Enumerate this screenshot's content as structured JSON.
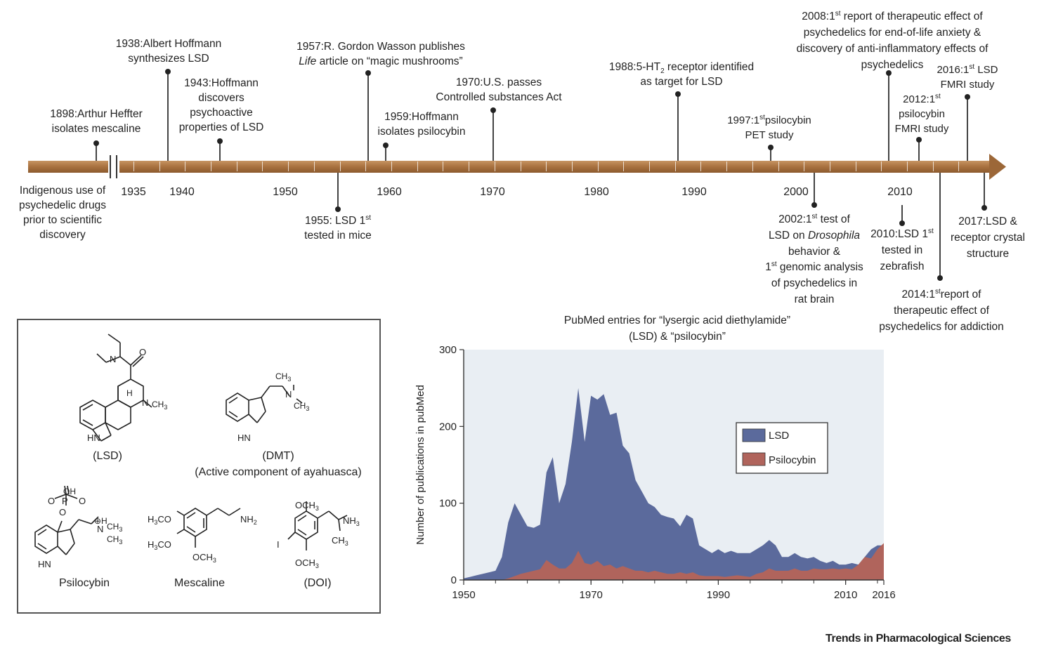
{
  "timeline": {
    "axis_labels": [
      {
        "text": "1935",
        "x": 190
      },
      {
        "text": "1940",
        "x": 259
      },
      {
        "text": "1950",
        "x": 406
      },
      {
        "text": "1960",
        "x": 554
      },
      {
        "text": "1970",
        "x": 701
      },
      {
        "text": "1980",
        "x": 849
      },
      {
        "text": "1990",
        "x": 988
      },
      {
        "text": "2000",
        "x": 1133
      },
      {
        "text": "2010",
        "x": 1281
      }
    ],
    "indigenous": [
      "Indigenous use of",
      "psychedelic drugs",
      "prior to scientific",
      "discovery"
    ],
    "events": {
      "e1898": [
        "1898:Arthur Heffter",
        "isolates mescaline"
      ],
      "e1938": [
        "1938:Albert Hoffmann",
        "synthesizes LSD"
      ],
      "e1943": [
        "1943:Hoffmann",
        "discovers",
        "psychoactive",
        "properties of LSD"
      ],
      "e1955": {
        "line1_a": "1955: LSD 1",
        "line1_sup": "st",
        "line2": "tested in mice"
      },
      "e1957": {
        "line1": "1957:R. Gordon Wasson publishes",
        "line2_italic": "Life",
        "line2_rest": " article on “magic mushrooms”"
      },
      "e1959": [
        "1959:Hoffmann",
        "isolates psilocybin"
      ],
      "e1970": [
        "1970:U.S. passes",
        "Controlled substances Act"
      ],
      "e1988": {
        "line1_a": "1988:5-HT",
        "line1_sub": "2",
        "line1_b": " receptor identified",
        "line2": "as target for LSD"
      },
      "e1997": {
        "line1_a": "1997:1",
        "line1_sup": "st",
        "line1_b": "psilocybin",
        "line2": "PET study"
      },
      "e2002": {
        "l1_a": "2002:1",
        "l1_sup": "st",
        "l1_b": " test of",
        "l2_a": "LSD on ",
        "l2_italic": "Drosophila",
        "l3": "behavior &",
        "l4_a": "1",
        "l4_sup": "st",
        "l4_b": " genomic analysis",
        "l5": "of psychedelics in",
        "l6": "rat brain"
      },
      "e2008": {
        "l1_a": "2008:1",
        "l1_sup": "st",
        "l1_b": " report of therapeutic effect of",
        "l2": "psychedelics for end-of-life anxiety &",
        "l3": "discovery of anti-inflammatory effects of",
        "l4": "psychedelics"
      },
      "e2010": {
        "l1_a": "2010:LSD 1",
        "l1_sup": "st",
        "l2": "tested in",
        "l3": "zebrafish"
      },
      "e2012": {
        "l1_a": "2012:1",
        "l1_sup": "st",
        "l2": "psilocybin",
        "l3": "FMRI study"
      },
      "e2014": {
        "l1_a": "2014:1",
        "l1_sup": "st",
        "l1_b": "report of",
        "l2": "therapeutic effect of",
        "l3": "psychedelics for addiction"
      },
      "e2016": {
        "l1_a": "2016:1",
        "l1_sup": "st",
        "l1_b": " LSD",
        "l2": "FMRI study"
      },
      "e2017": [
        "2017:LSD &",
        "receptor crystal",
        "structure"
      ]
    }
  },
  "structures": {
    "lsd": "(LSD)",
    "dmt_1": "(DMT)",
    "dmt_2": "(Active component of ayahuasca)",
    "psilocybin": "Psilocybin",
    "mescaline": "Mescaline",
    "doi": "(DOI)"
  },
  "chart_data": {
    "type": "area",
    "title": "PubMed entries for “lysergic acid diethylamide” (LSD) & “psilocybin”",
    "title_line1": "PubMed entries for “lysergic acid diethylamide”",
    "title_line2": "(LSD) & “psilocybin”",
    "xlabel": "",
    "ylabel": "Number of publications in pubMed",
    "xlim": [
      1950,
      2016
    ],
    "ylim": [
      0,
      300
    ],
    "xticks": [
      "1950",
      "1970",
      "1990",
      "2010",
      "2016"
    ],
    "xtick_values": [
      1950,
      1970,
      1990,
      2010,
      2016
    ],
    "yticks": [
      "0",
      "100",
      "200",
      "300"
    ],
    "ytick_values": [
      0,
      100,
      200,
      300
    ],
    "legend_position": "center-right",
    "series": [
      {
        "name": "LSD",
        "color": "#5b6a9c",
        "x": [
          1950,
          1951,
          1952,
          1953,
          1954,
          1955,
          1956,
          1957,
          1958,
          1959,
          1960,
          1961,
          1962,
          1963,
          1964,
          1965,
          1966,
          1967,
          1968,
          1969,
          1970,
          1971,
          1972,
          1973,
          1974,
          1975,
          1976,
          1977,
          1978,
          1979,
          1980,
          1981,
          1982,
          1983,
          1984,
          1985,
          1986,
          1987,
          1988,
          1989,
          1990,
          1991,
          1992,
          1993,
          1994,
          1995,
          1996,
          1997,
          1998,
          1999,
          2000,
          2001,
          2002,
          2003,
          2004,
          2005,
          2006,
          2007,
          2008,
          2009,
          2010,
          2011,
          2012,
          2013,
          2014,
          2015,
          2016
        ],
        "values": [
          2,
          4,
          6,
          8,
          10,
          12,
          30,
          75,
          100,
          85,
          70,
          68,
          72,
          140,
          160,
          100,
          125,
          180,
          250,
          180,
          240,
          235,
          242,
          215,
          218,
          175,
          165,
          130,
          115,
          100,
          95,
          85,
          82,
          80,
          70,
          85,
          80,
          45,
          40,
          35,
          40,
          35,
          38,
          35,
          35,
          35,
          40,
          45,
          52,
          45,
          30,
          30,
          35,
          30,
          28,
          30,
          25,
          22,
          25,
          20,
          20,
          22,
          20,
          30,
          40,
          45,
          45
        ]
      },
      {
        "name": "Psilocybin",
        "color": "#b0645c",
        "x": [
          1950,
          1951,
          1952,
          1953,
          1954,
          1955,
          1956,
          1957,
          1958,
          1959,
          1960,
          1961,
          1962,
          1963,
          1964,
          1965,
          1966,
          1967,
          1968,
          1969,
          1970,
          1971,
          1972,
          1973,
          1974,
          1975,
          1976,
          1977,
          1978,
          1979,
          1980,
          1981,
          1982,
          1983,
          1984,
          1985,
          1986,
          1987,
          1988,
          1989,
          1990,
          1991,
          1992,
          1993,
          1994,
          1995,
          1996,
          1997,
          1998,
          1999,
          2000,
          2001,
          2002,
          2003,
          2004,
          2005,
          2006,
          2007,
          2008,
          2009,
          2010,
          2011,
          2012,
          2013,
          2014,
          2015,
          2016
        ],
        "values": [
          0,
          0,
          0,
          0,
          0,
          0,
          0,
          2,
          5,
          8,
          10,
          12,
          14,
          26,
          20,
          15,
          15,
          22,
          38,
          22,
          20,
          25,
          18,
          20,
          15,
          18,
          15,
          12,
          12,
          10,
          12,
          10,
          8,
          8,
          10,
          8,
          10,
          6,
          5,
          5,
          5,
          4,
          5,
          6,
          5,
          4,
          8,
          10,
          15,
          12,
          12,
          12,
          15,
          12,
          12,
          15,
          14,
          14,
          15,
          14,
          15,
          14,
          20,
          30,
          28,
          40,
          48
        ]
      }
    ]
  },
  "footer": {
    "publisher": "Trends in Pharmacological Sciences"
  }
}
